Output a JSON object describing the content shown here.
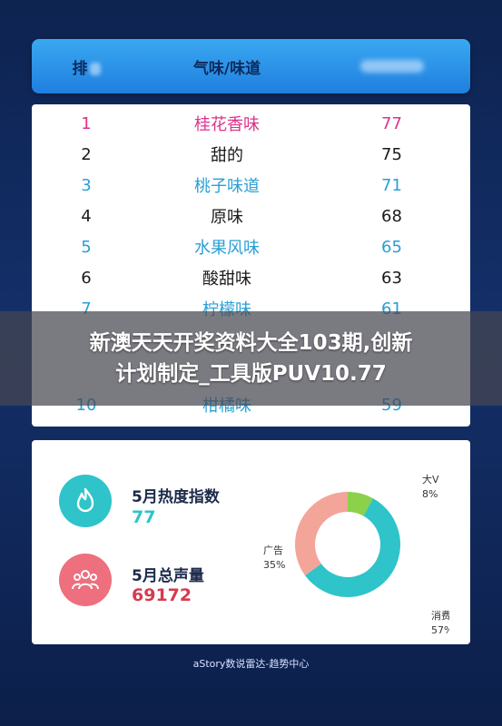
{
  "header": {
    "rank_label": "排",
    "flavor_label": "气味/味道"
  },
  "rows": [
    {
      "rank": "1",
      "flavor": "桂花香味",
      "score": "77",
      "style": "hl"
    },
    {
      "rank": "2",
      "flavor": "甜的",
      "score": "75",
      "style": "dark"
    },
    {
      "rank": "3",
      "flavor": "桃子味道",
      "score": "71",
      "style": "blue"
    },
    {
      "rank": "4",
      "flavor": "原味",
      "score": "68",
      "style": "dark"
    },
    {
      "rank": "5",
      "flavor": "水果风味",
      "score": "65",
      "style": "blue"
    },
    {
      "rank": "6",
      "flavor": "酸甜味",
      "score": "63",
      "style": "dark"
    },
    {
      "rank": "7",
      "flavor": "柠檬味",
      "score": "61",
      "style": "blue"
    },
    {
      "rank": "10",
      "flavor": "柑橘味",
      "score": "59",
      "style": "blue"
    }
  ],
  "banner": {
    "line1": "新澳天天开奖资料大全103期,创新",
    "line2": "计划制定_工具版PUV10.77"
  },
  "stats": {
    "heat_label": "5月热度指数",
    "heat_value": "77",
    "volume_label": "5月总声量",
    "volume_value": "69172"
  },
  "footer": "aStory数说雷达-趋势中心",
  "colors": {
    "accent_pink": "#e0308a",
    "accent_blue": "#2a9fd6",
    "teal": "#2ec4c9",
    "salmon": "#f3a59a",
    "green": "#8bd14a",
    "heat_icon_bg": "#2ec4c9",
    "volume_icon_bg": "#ee6f7e"
  },
  "icons": {
    "heat": "flame-icon",
    "volume": "people-group-icon"
  },
  "chart_data": {
    "type": "pie",
    "title": "",
    "categories": [
      "大V",
      "消费者",
      "广告"
    ],
    "values": [
      8,
      57,
      35
    ],
    "percent_labels": [
      "8%",
      "57%",
      "35%"
    ],
    "colors": [
      "#8bd14a",
      "#2ec4c9",
      "#f3a59a"
    ],
    "style": "donut"
  }
}
